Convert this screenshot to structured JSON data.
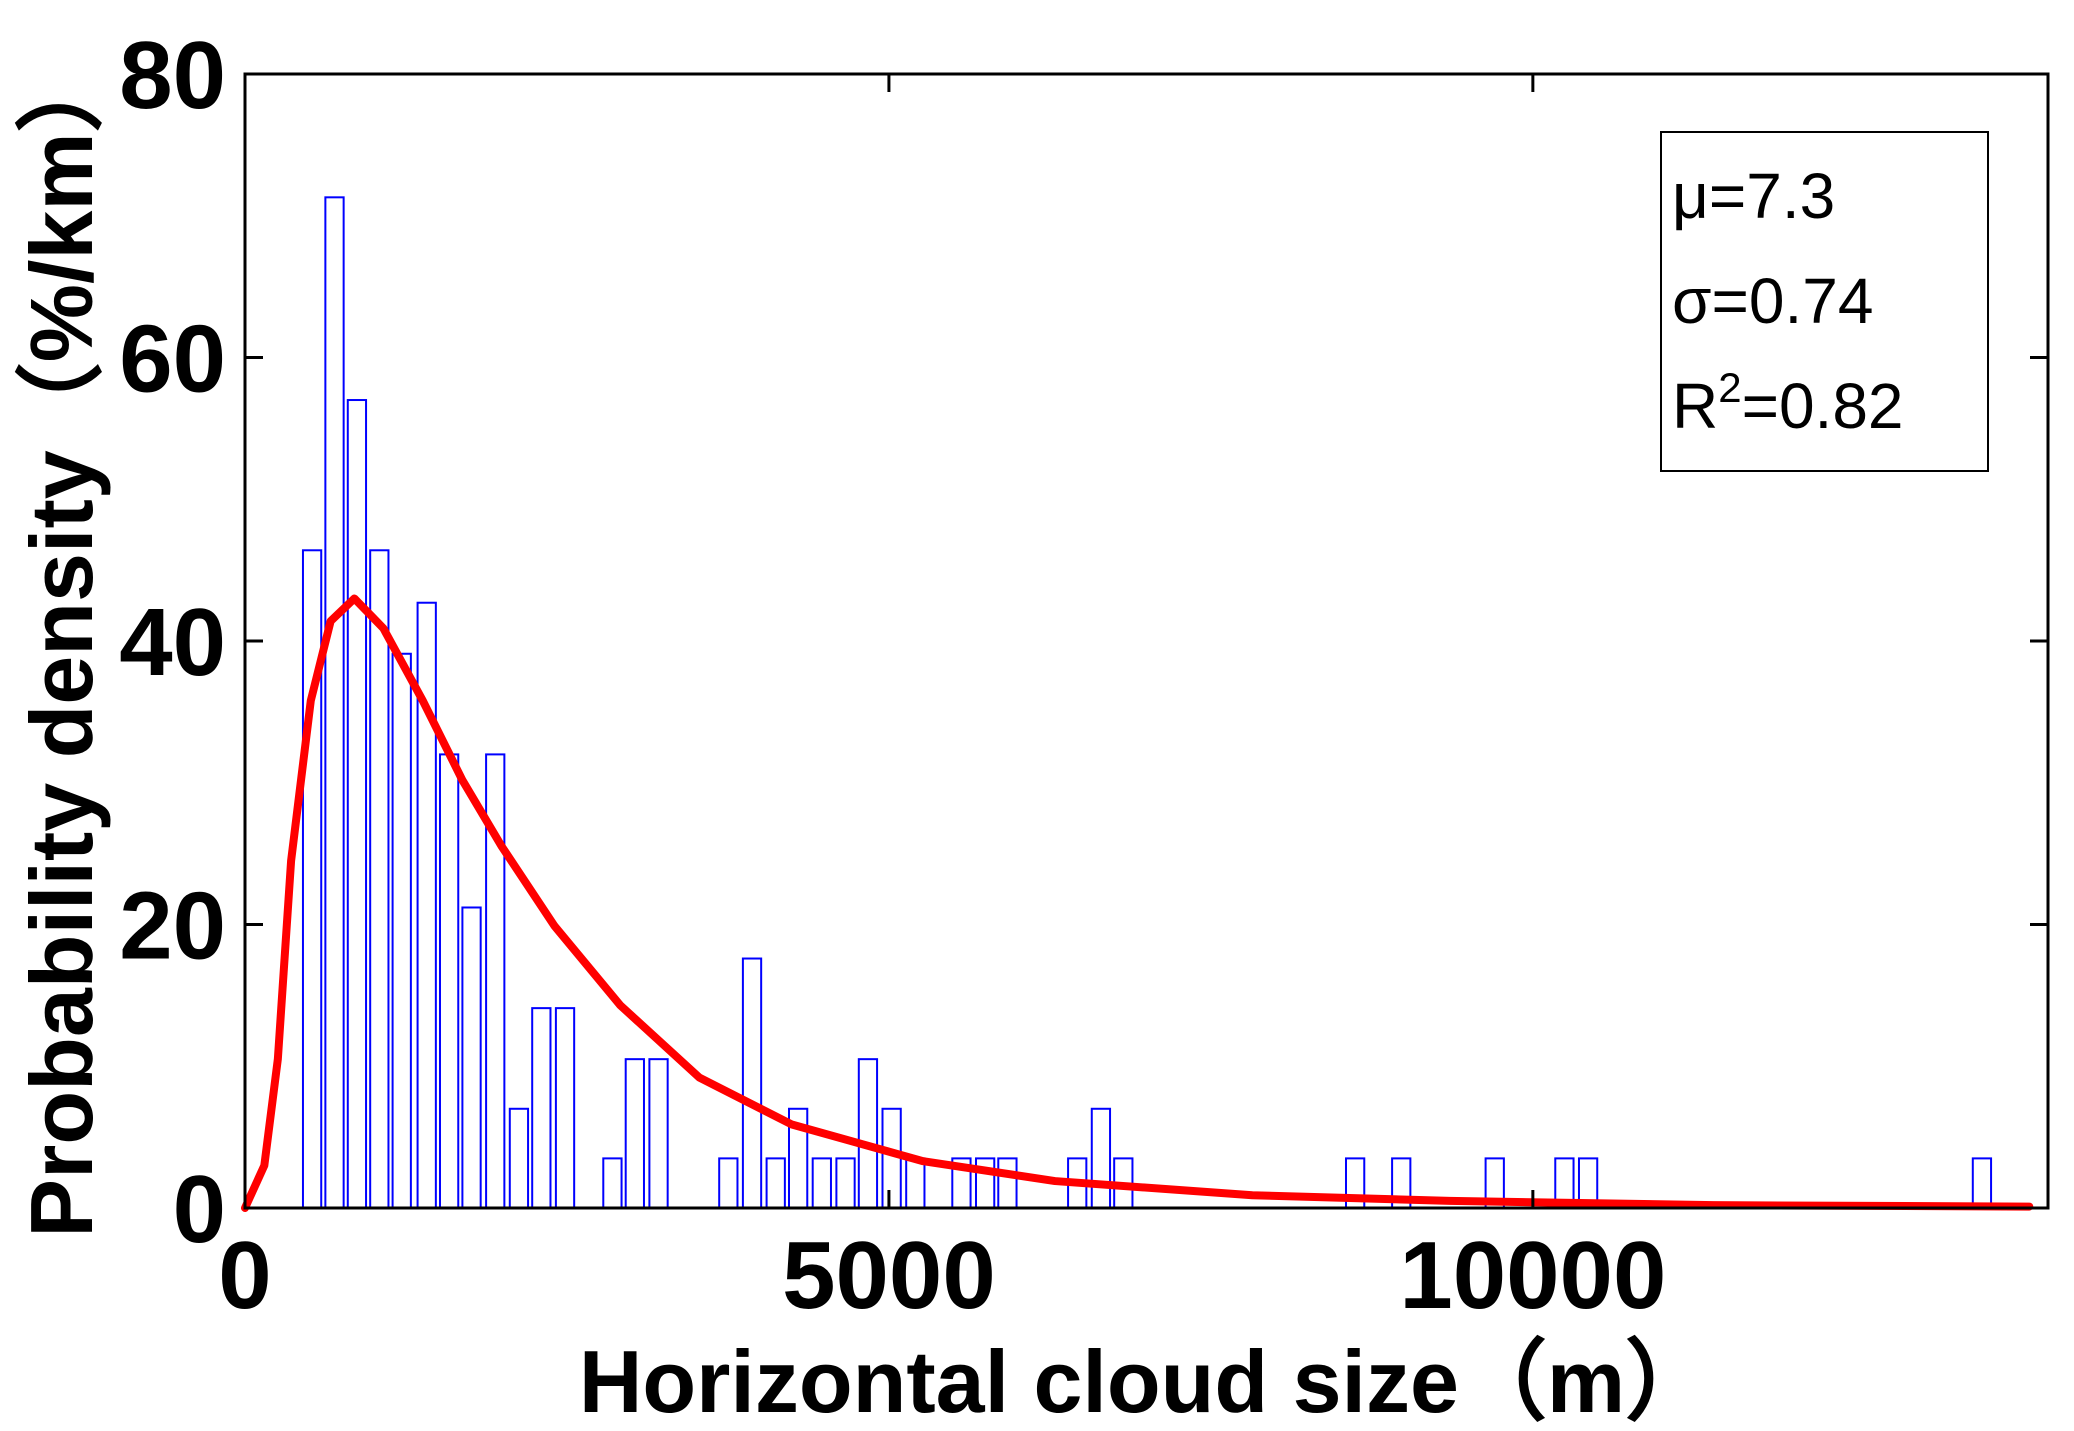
{
  "chart_data": {
    "type": "bar",
    "x_label": "Horizontal cloud size（m）",
    "y_label": "Probability density（%/km）",
    "x": [
      521,
      695,
      869,
      1043,
      1217,
      1411,
      1585,
      1759,
      1943,
      2127,
      2301,
      2485,
      2853,
      3027,
      3211,
      3753,
      3937,
      4121,
      4295,
      4479,
      4663,
      4837,
      5021,
      5205,
      5563,
      5747,
      5920,
      6462,
      6646,
      6820,
      8620,
      8978,
      9704,
      10245,
      10429,
      13487
    ],
    "values": [
      46.4,
      71.3,
      57.0,
      46.4,
      39.1,
      42.7,
      32.0,
      21.2,
      32.0,
      7.0,
      14.1,
      14.1,
      3.5,
      10.5,
      10.5,
      3.5,
      17.6,
      3.5,
      7.0,
      3.5,
      3.5,
      10.5,
      7.0,
      3.5,
      3.5,
      3.5,
      3.5,
      3.5,
      7.0,
      3.5,
      3.5,
      3.5,
      3.5,
      3.5,
      3.5,
      3.5
    ],
    "color": "#0000ff",
    "fit": {
      "color": "#ff0000",
      "x": [
        0,
        150,
        255,
        358,
        511,
        665,
        849,
        1074,
        1380,
        1687,
        1994,
        2403,
        2914,
        3528,
        4243,
        5266,
        6289,
        7822,
        9356,
        11401,
        13855
      ],
      "values": [
        0,
        3,
        10.5,
        24.5,
        35.8,
        41.4,
        43.0,
        40.9,
        35.8,
        30.2,
        25.5,
        19.9,
        14.3,
        9.2,
        5.9,
        3.3,
        1.9,
        0.9,
        0.5,
        0.2,
        0.1
      ]
    },
    "annotations": [
      "μ=7.3",
      "σ=0.74",
      [
        "R",
        "2",
        "=0.82"
      ]
    ],
    "xlim": [
      0,
      14000
    ],
    "ylim": [
      0,
      80
    ],
    "xticks": [
      0,
      5000,
      10000
    ],
    "yticks": [
      0,
      20,
      40,
      60,
      80
    ],
    "grid": false
  }
}
